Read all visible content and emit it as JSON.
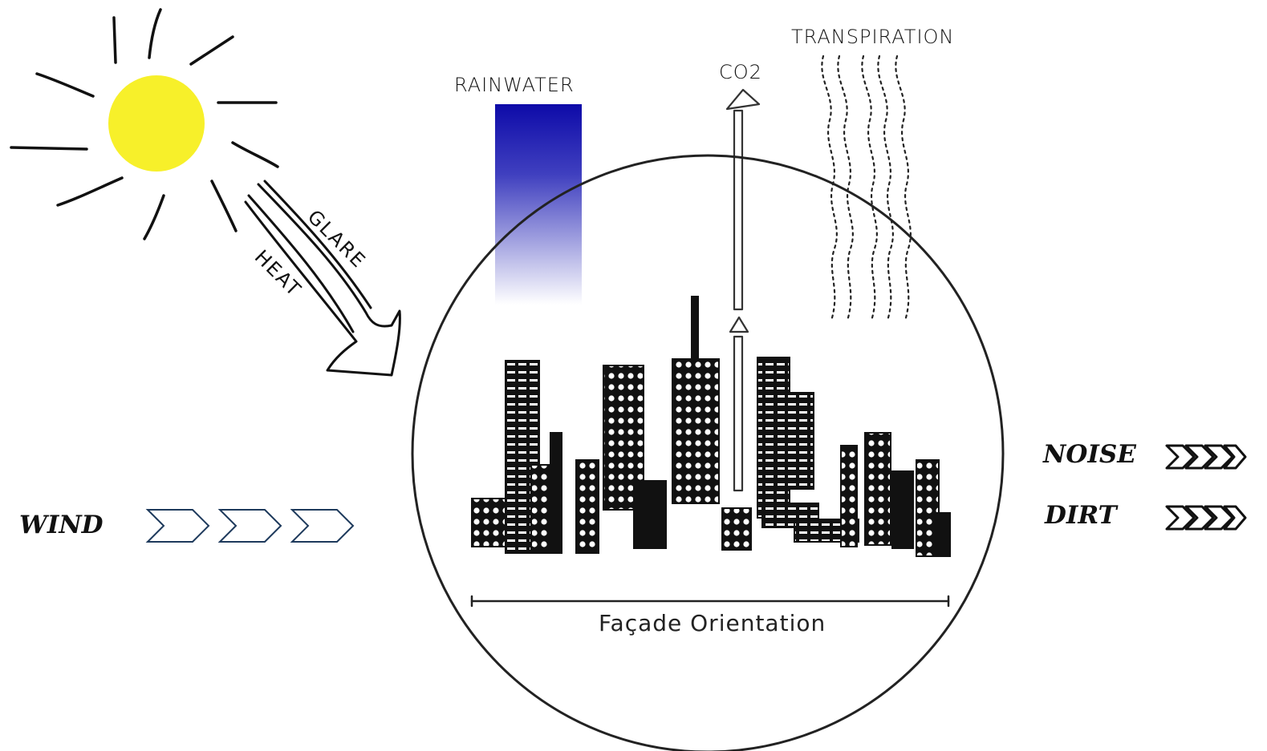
{
  "labels": {
    "rainwater": "RAINWATER",
    "co2": "CO2",
    "transpiration": "TRANSPIRATION",
    "glare": "GLARE",
    "heat": "HEAT",
    "wind": "WIND",
    "noise": "NOISE",
    "dirt": "DIRT",
    "facade_orientation": "Façade Orientation"
  },
  "icons": {
    "sun": "sun-icon",
    "city": "city-skyline-icon",
    "wind_arrows": "chevron-right-icon",
    "noise_arrows": "chevron-right-icon",
    "dirt_arrows": "chevron-right-icon"
  },
  "colors": {
    "sun": "#f7f02a",
    "rainwater_top": "#0d0aa8",
    "wind_chevron": "#1e3a5c",
    "ink": "#111111"
  }
}
